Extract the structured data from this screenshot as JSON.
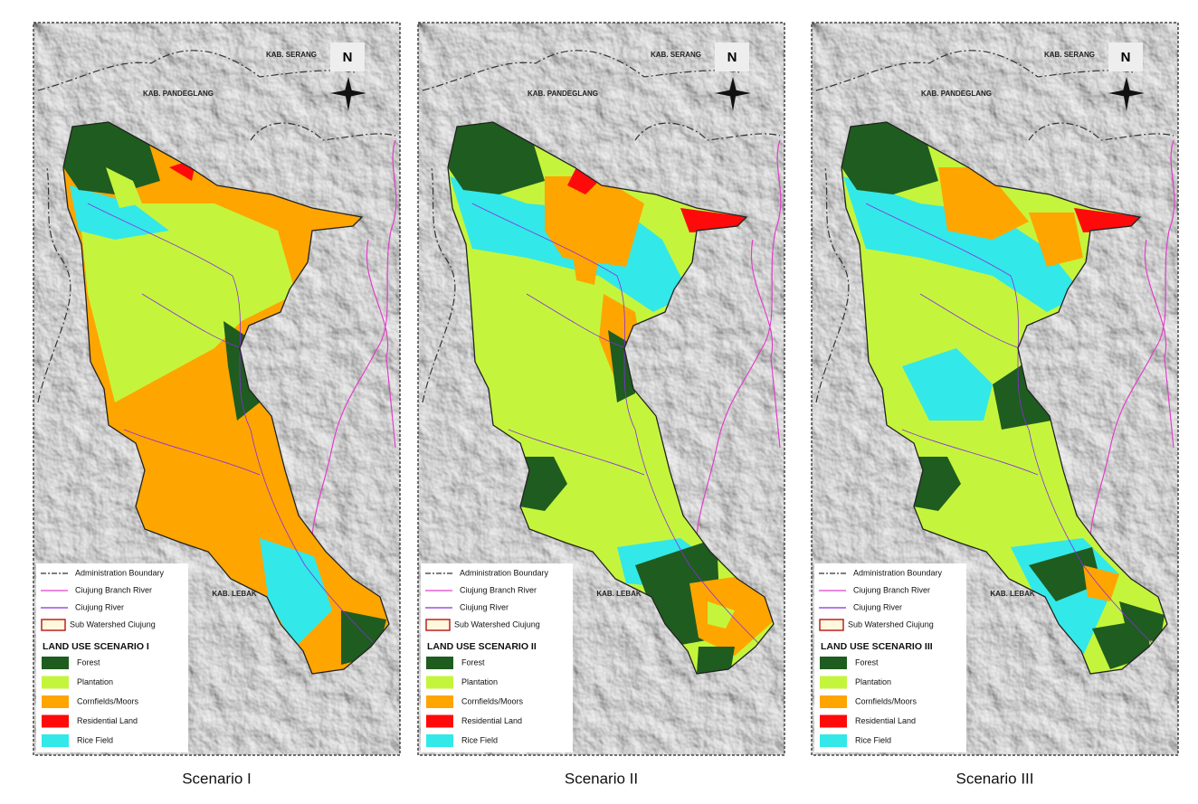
{
  "panels": [
    {
      "caption": "Scenario I",
      "map_labels": {
        "north": "N",
        "serang": "KAB. SERANG",
        "pandeglang": "KAB. PANDEGLANG",
        "lebak": "KAB. LEBAK"
      },
      "legend": {
        "lines": [
          "Administration Boundary",
          "Ciujung Branch River",
          "Ciujung River",
          "Sub Watershed Ciujung"
        ],
        "title": "LAND USE SCENARIO I",
        "items": [
          {
            "label": "Forest",
            "color": "#1f5c1f"
          },
          {
            "label": "Plantation",
            "color": "#c4f53c"
          },
          {
            "label": "Cornfields/Moors",
            "color": "#ffa500"
          },
          {
            "label": "Residential Land",
            "color": "#ff0a0a"
          },
          {
            "label": "Rice Field",
            "color": "#33e8e8"
          }
        ]
      }
    },
    {
      "caption": "Scenario II",
      "map_labels": {
        "north": "N",
        "serang": "KAB. SERANG",
        "pandeglang": "KAB. PANDEGLANG",
        "lebak": "KAB. LEBAK"
      },
      "legend": {
        "lines": [
          "Administration Boundary",
          "Ciujung Branch River",
          "Ciujung River",
          "Sub Watershed Ciujung"
        ],
        "title": "LAND USE SCENARIO II",
        "items": [
          {
            "label": "Forest",
            "color": "#1f5c1f"
          },
          {
            "label": "Plantation",
            "color": "#c4f53c"
          },
          {
            "label": "Cornfields/Moors",
            "color": "#ffa500"
          },
          {
            "label": "Residential Land",
            "color": "#ff0a0a"
          },
          {
            "label": "Rice Field",
            "color": "#33e8e8"
          }
        ]
      }
    },
    {
      "caption": "Scenario III",
      "map_labels": {
        "north": "N",
        "serang": "KAB. SERANG",
        "pandeglang": "KAB. PANDEGLANG",
        "lebak": "KAB. LEBAK"
      },
      "legend": {
        "lines": [
          "Administration Boundary",
          "Ciujung Branch River",
          "Ciujung River",
          "Sub Watershed Ciujung"
        ],
        "title": "LAND USE SCENARIO III",
        "items": [
          {
            "label": "Forest",
            "color": "#1f5c1f"
          },
          {
            "label": "Plantation",
            "color": "#c4f53c"
          },
          {
            "label": "Cornfields/Moors",
            "color": "#ffa500"
          },
          {
            "label": "Residential Land",
            "color": "#ff0a0a"
          },
          {
            "label": "Rice Field",
            "color": "#33e8e8"
          }
        ]
      }
    }
  ]
}
